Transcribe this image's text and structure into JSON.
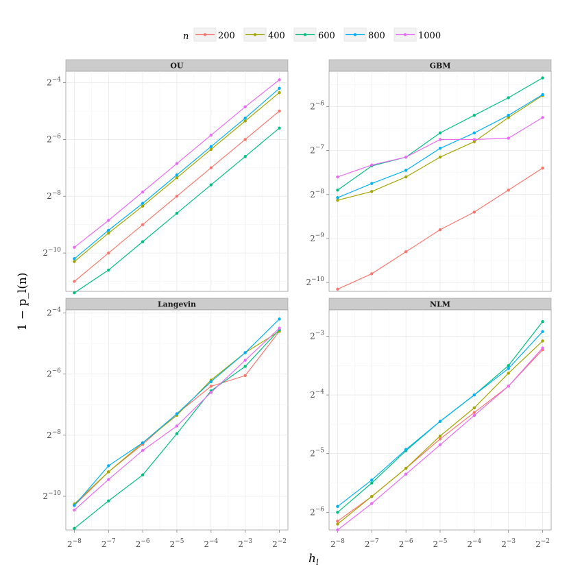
{
  "chart_data": {
    "type": "line",
    "x_axis_title": "h_l",
    "y_axis_title": "1 − p_l(n)",
    "legend": {
      "title": "n",
      "position": "top",
      "entries": [
        {
          "name": "200",
          "color": "#F8766D"
        },
        {
          "name": "400",
          "color": "#A3A500"
        },
        {
          "name": "600",
          "color": "#00BF7D"
        },
        {
          "name": "800",
          "color": "#00B0F6"
        },
        {
          "name": "1000",
          "color": "#E76BF3"
        }
      ]
    },
    "x_log2": [
      -8,
      -7,
      -6,
      -5,
      -4,
      -3,
      -2
    ],
    "x_tick_labels": [
      "2^-8",
      "2^-7",
      "2^-6",
      "2^-5",
      "2^-4",
      "2^-3",
      "2^-2"
    ],
    "panels": [
      {
        "title": "OU",
        "y_log2_range": [
          -11.35,
          -3.6
        ],
        "y_ticks": [
          -10,
          -8,
          -6,
          -4
        ],
        "series": [
          {
            "name": "200",
            "values": [
              -11.0,
              -10.0,
              -9.0,
              -8.0,
              -7.0,
              -6.0,
              -5.0
            ]
          },
          {
            "name": "400",
            "values": [
              -10.3,
              -9.3,
              -8.35,
              -7.35,
              -6.35,
              -5.35,
              -4.35
            ]
          },
          {
            "name": "600",
            "values": [
              -11.4,
              -10.6,
              -9.6,
              -8.6,
              -7.6,
              -6.6,
              -5.6
            ]
          },
          {
            "name": "800",
            "values": [
              -10.2,
              -9.2,
              -8.25,
              -7.25,
              -6.25,
              -5.25,
              -4.2
            ]
          },
          {
            "name": "1000",
            "values": [
              -9.8,
              -8.85,
              -7.85,
              -6.85,
              -5.85,
              -4.85,
              -3.9
            ]
          }
        ]
      },
      {
        "title": "GBM",
        "y_log2_range": [
          -10.2,
          -5.2
        ],
        "y_ticks": [
          -10,
          -9,
          -8,
          -7,
          -6
        ],
        "series": [
          {
            "name": "200",
            "values": [
              -10.15,
              -9.8,
              -9.3,
              -8.8,
              -8.4,
              -7.9,
              -7.4
            ]
          },
          {
            "name": "400",
            "values": [
              -8.13,
              -7.93,
              -7.6,
              -7.15,
              -6.8,
              -6.25,
              -5.75
            ]
          },
          {
            "name": "600",
            "values": [
              -7.9,
              -7.35,
              -7.15,
              -6.6,
              -6.2,
              -5.8,
              -5.35
            ]
          },
          {
            "name": "800",
            "values": [
              -8.07,
              -7.75,
              -7.45,
              -6.95,
              -6.6,
              -6.2,
              -5.73
            ]
          },
          {
            "name": "1000",
            "values": [
              -7.6,
              -7.33,
              -7.15,
              -6.75,
              -6.75,
              -6.72,
              -6.25
            ]
          }
        ]
      },
      {
        "title": "Langevin",
        "y_log2_range": [
          -11.1,
          -3.9
        ],
        "y_ticks": [
          -10,
          -8,
          -6,
          -4
        ],
        "series": [
          {
            "name": "200",
            "values": [
              -10.3,
              -9.2,
              -8.3,
              -7.3,
              -6.4,
              -6.05,
              -4.6
            ]
          },
          {
            "name": "400",
            "values": [
              -10.25,
              -9.2,
              -8.25,
              -7.35,
              -6.2,
              -5.3,
              -4.6
            ]
          },
          {
            "name": "600",
            "values": [
              -11.05,
              -10.15,
              -9.3,
              -7.95,
              -6.55,
              -5.75,
              -4.55
            ]
          },
          {
            "name": "800",
            "values": [
              -10.3,
              -9.0,
              -8.25,
              -7.3,
              -6.25,
              -5.3,
              -4.2
            ]
          },
          {
            "name": "1000",
            "values": [
              -10.45,
              -9.45,
              -8.5,
              -7.7,
              -6.6,
              -5.55,
              -4.5
            ]
          }
        ]
      },
      {
        "title": "NLM",
        "y_log2_range": [
          -6.3,
          -2.55
        ],
        "y_ticks": [
          -6,
          -5,
          -4,
          -3
        ],
        "series": [
          {
            "name": "200",
            "values": [
              -6.15,
              -5.73,
              -5.25,
              -4.75,
              -4.3,
              -3.85,
              -3.23
            ]
          },
          {
            "name": "400",
            "values": [
              -6.2,
              -5.73,
              -5.25,
              -4.7,
              -4.22,
              -3.63,
              -3.08
            ]
          },
          {
            "name": "600",
            "values": [
              -6.0,
              -5.5,
              -4.95,
              -4.45,
              -4.0,
              -3.5,
              -2.75
            ]
          },
          {
            "name": "800",
            "values": [
              -5.9,
              -5.45,
              -4.93,
              -4.45,
              -4.0,
              -3.55,
              -2.92
            ]
          },
          {
            "name": "1000",
            "values": [
              -6.3,
              -5.85,
              -5.35,
              -4.85,
              -4.35,
              -3.85,
              -3.2
            ]
          }
        ]
      }
    ]
  }
}
